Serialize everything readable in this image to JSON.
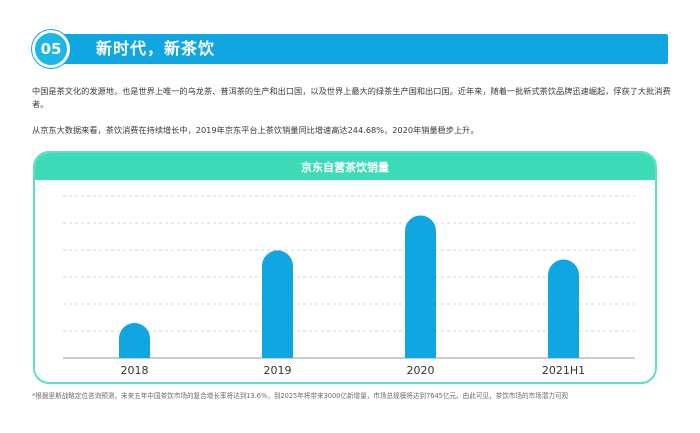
{
  "section": {
    "number": "05",
    "title": "新时代，新茶饮"
  },
  "paragraphs": {
    "p1": "中国是茶文化的发源地，也是世界上唯一的乌龙茶、普洱茶的生产和出口国，以及世界上最大的绿茶生产国和出口国。近年来，随着一批新式茶饮品牌迅速崛起，俘获了大批消费者。",
    "p2": "从京东大数据来看，茶饮消费在持续增长中，2019年京东平台上茶饮销量同比增速高达244.68%，2020年销量稳步上升。"
  },
  "footnote": "*根据里斯战略定位咨询预测，未来五年中国茶饮市场的复合增长率将达到13.6%，到2025年将带来3000亿新增量，市场总规模将达到7645亿元。由此可见，茶饮市场的市场潜力可观",
  "colors": {
    "banner": "#0fa6e2",
    "card_accent": "#3ddbb8",
    "bar": "#0fa6e2",
    "grid": "#c8c8c8",
    "axis": "#9a9a9a"
  },
  "chart_data": {
    "type": "bar",
    "title": "京东自营茶饮销量",
    "categories": [
      "2018",
      "2019",
      "2020",
      "2021H1"
    ],
    "values": [
      27,
      83,
      110,
      76
    ],
    "ylim": [
      0,
      125
    ],
    "grid": true,
    "legend": "none"
  }
}
